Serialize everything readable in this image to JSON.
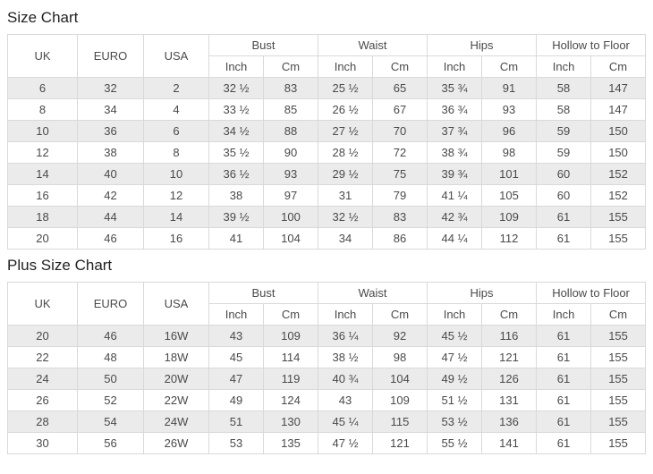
{
  "colors": {
    "stripe": "#ebebeb",
    "border": "#d9d9d9",
    "text": "#4a4a4a",
    "title": "#222222",
    "bg": "#ffffff"
  },
  "size_chart": {
    "title": "Size Chart",
    "header": {
      "uk": "UK",
      "euro": "EURO",
      "usa": "USA",
      "groups": [
        "Bust",
        "Waist",
        "Hips",
        "Hollow to Floor"
      ],
      "sub": [
        "Inch",
        "Cm"
      ]
    },
    "rows": [
      [
        "6",
        "32",
        "2",
        "32 ½",
        "83",
        "25 ½",
        "65",
        "35 ¾",
        "91",
        "58",
        "147"
      ],
      [
        "8",
        "34",
        "4",
        "33 ½",
        "85",
        "26 ½",
        "67",
        "36 ¾",
        "93",
        "58",
        "147"
      ],
      [
        "10",
        "36",
        "6",
        "34 ½",
        "88",
        "27 ½",
        "70",
        "37 ¾",
        "96",
        "59",
        "150"
      ],
      [
        "12",
        "38",
        "8",
        "35 ½",
        "90",
        "28 ½",
        "72",
        "38 ¾",
        "98",
        "59",
        "150"
      ],
      [
        "14",
        "40",
        "10",
        "36 ½",
        "93",
        "29 ½",
        "75",
        "39 ¾",
        "101",
        "60",
        "152"
      ],
      [
        "16",
        "42",
        "12",
        "38",
        "97",
        "31",
        "79",
        "41 ¼",
        "105",
        "60",
        "152"
      ],
      [
        "18",
        "44",
        "14",
        "39 ½",
        "100",
        "32 ½",
        "83",
        "42 ¾",
        "109",
        "61",
        "155"
      ],
      [
        "20",
        "46",
        "16",
        "41",
        "104",
        "34",
        "86",
        "44 ¼",
        "112",
        "61",
        "155"
      ]
    ]
  },
  "plus_size_chart": {
    "title": "Plus Size Chart",
    "header": {
      "uk": "UK",
      "euro": "EURO",
      "usa": "USA",
      "groups": [
        "Bust",
        "Waist",
        "Hips",
        "Hollow to Floor"
      ],
      "sub": [
        "Inch",
        "Cm"
      ]
    },
    "rows": [
      [
        "20",
        "46",
        "16W",
        "43",
        "109",
        "36 ¼",
        "92",
        "45 ½",
        "116",
        "61",
        "155"
      ],
      [
        "22",
        "48",
        "18W",
        "45",
        "114",
        "38 ½",
        "98",
        "47 ½",
        "121",
        "61",
        "155"
      ],
      [
        "24",
        "50",
        "20W",
        "47",
        "119",
        "40 ¾",
        "104",
        "49 ½",
        "126",
        "61",
        "155"
      ],
      [
        "26",
        "52",
        "22W",
        "49",
        "124",
        "43",
        "109",
        "51 ½",
        "131",
        "61",
        "155"
      ],
      [
        "28",
        "54",
        "24W",
        "51",
        "130",
        "45 ¼",
        "115",
        "53 ½",
        "136",
        "61",
        "155"
      ],
      [
        "30",
        "56",
        "26W",
        "53",
        "135",
        "47 ½",
        "121",
        "55 ½",
        "141",
        "61",
        "155"
      ]
    ]
  }
}
